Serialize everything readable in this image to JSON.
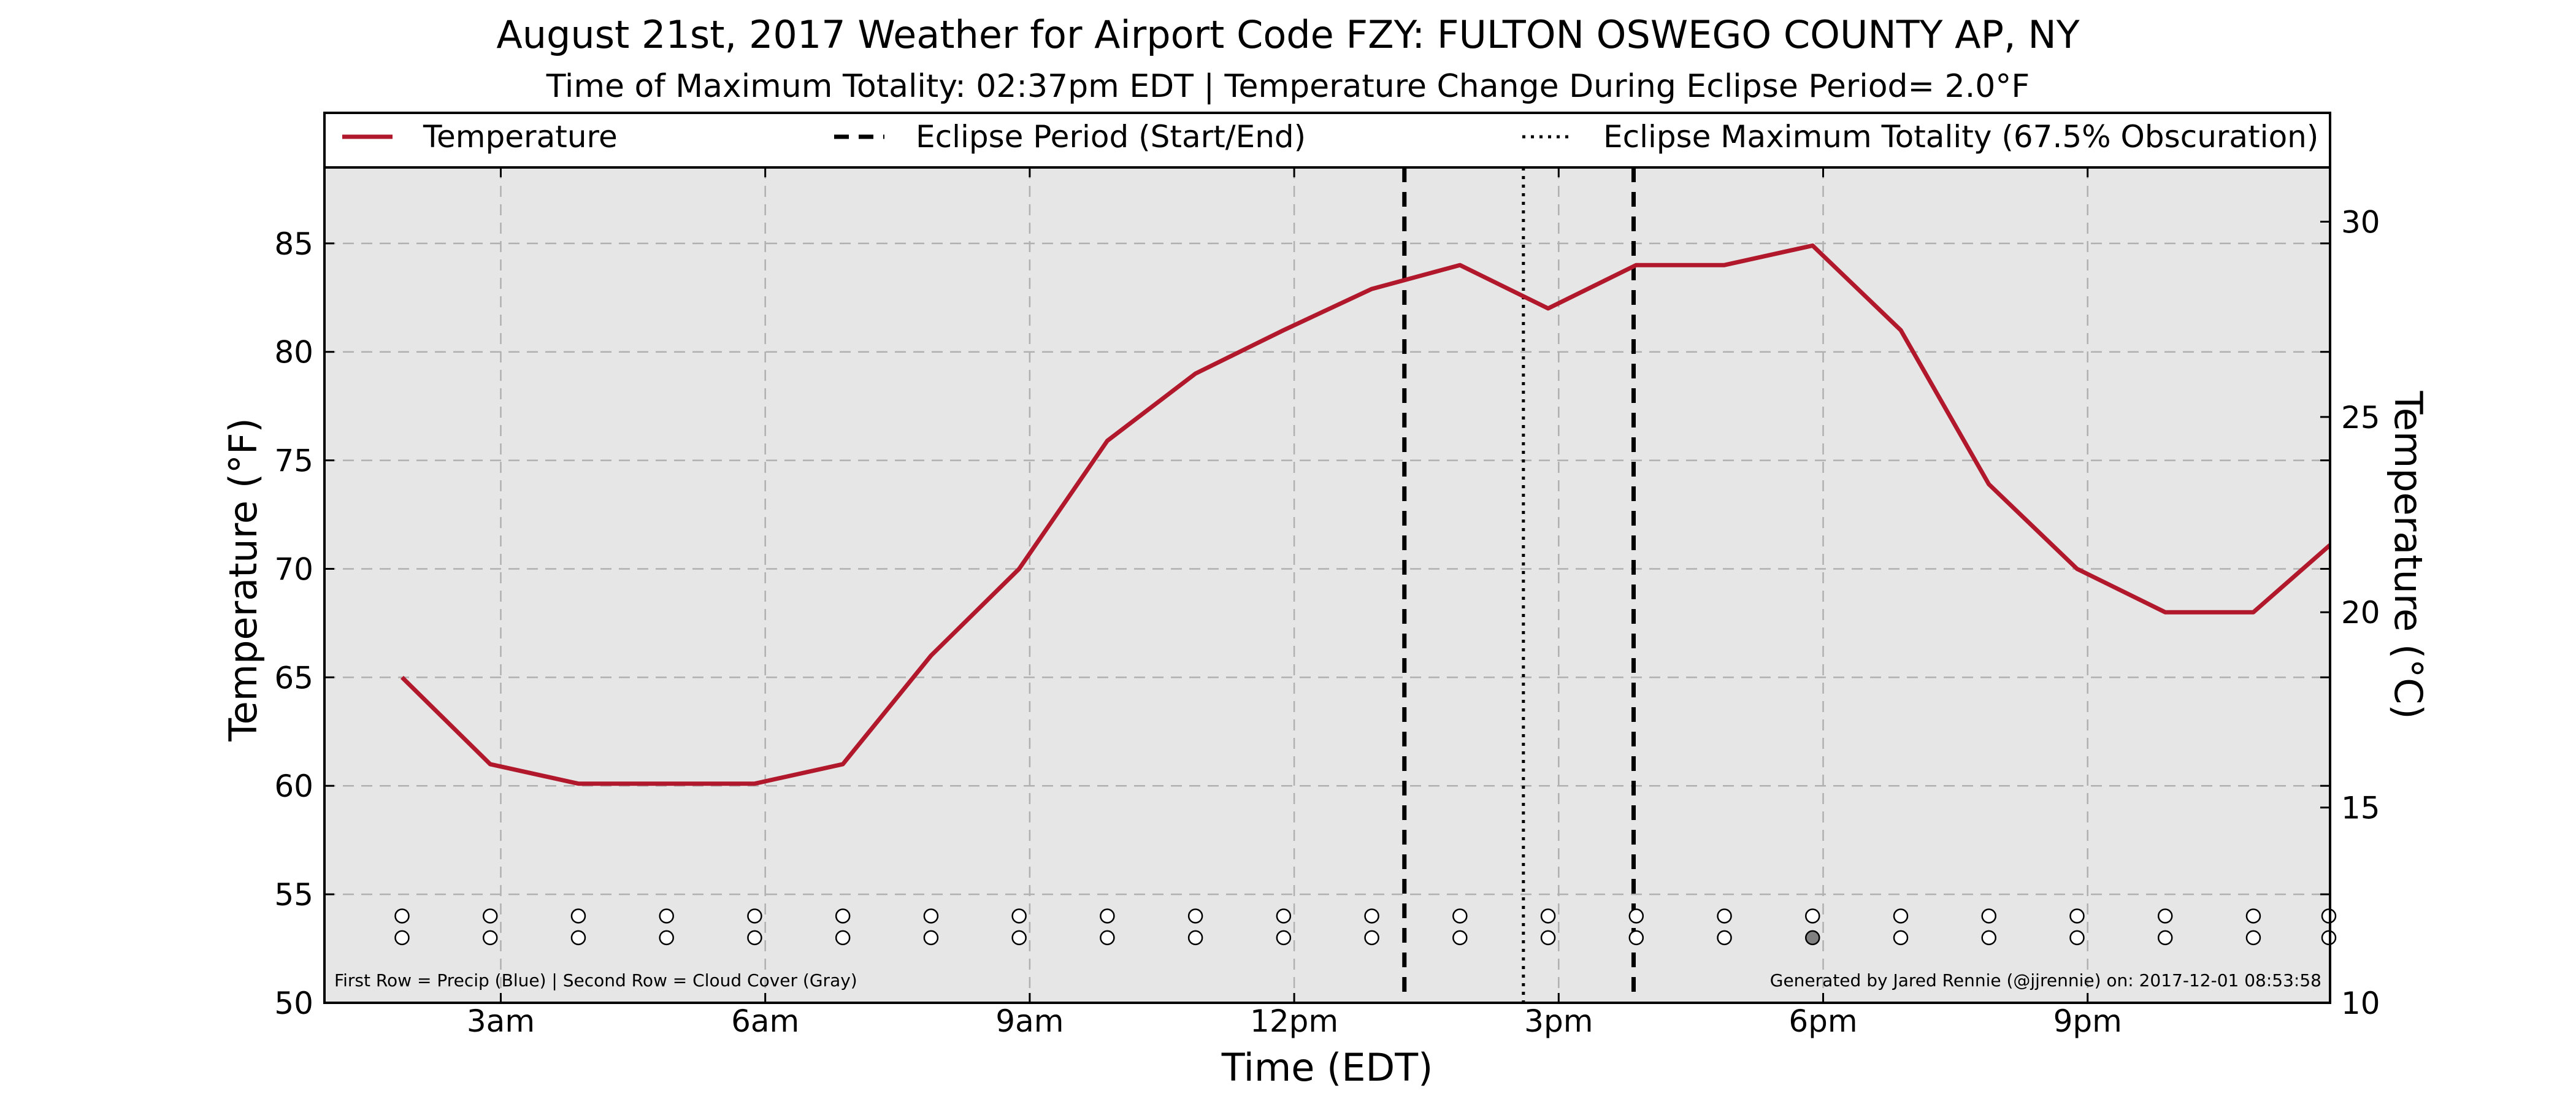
{
  "chart_data": {
    "type": "line",
    "title": "August 21st, 2017 Weather for Airport Code FZY: FULTON OSWEGO COUNTY AP, NY",
    "subtitle": "Time of Maximum Totality: 02:37pm EDT | Temperature Change During Eclipse Period= 2.0°F",
    "xlabel": "Time (EDT)",
    "ylabel": "Temperature (°F)",
    "ylabel_right": "Temperature (°C)",
    "xlim": [
      1.0,
      23.75
    ],
    "ylim": [
      50,
      88.5
    ],
    "x_ticks": [
      {
        "x": 3,
        "label": "3am"
      },
      {
        "x": 6,
        "label": "6am"
      },
      {
        "x": 9,
        "label": "9am"
      },
      {
        "x": 12,
        "label": "12pm"
      },
      {
        "x": 15,
        "label": "3pm"
      },
      {
        "x": 18,
        "label": "6pm"
      },
      {
        "x": 21,
        "label": "9pm"
      }
    ],
    "y_ticks": [
      50,
      55,
      60,
      65,
      70,
      75,
      80,
      85
    ],
    "y_ticks_right": [
      10,
      15,
      20,
      25,
      30
    ],
    "grid": true,
    "legend_position": "top",
    "legend": [
      {
        "label": "Temperature",
        "style": "solid"
      },
      {
        "label": "Eclipse Period (Start/End)",
        "style": "dashed"
      },
      {
        "label": "Eclipse Maximum Totality (67.5% Obscuration)",
        "style": "dotted"
      }
    ],
    "series": [
      {
        "name": "Temperature",
        "color": "#b2182b",
        "x": [
          1.88,
          2.88,
          3.88,
          4.88,
          5.88,
          6.88,
          7.88,
          8.88,
          9.88,
          10.88,
          11.88,
          12.88,
          13.88,
          14.88,
          15.88,
          16.88,
          17.88,
          18.88,
          19.88,
          20.88,
          21.88,
          22.88,
          23.88
        ],
        "y": [
          65.0,
          61.0,
          60.1,
          60.1,
          60.1,
          61.0,
          66.0,
          70.0,
          75.9,
          79.0,
          81.0,
          82.9,
          84.0,
          82.0,
          84.0,
          84.0,
          84.9,
          81.0,
          73.9,
          70.0,
          68.0,
          68.0,
          71.1
        ]
      }
    ],
    "eclipse_start": 13.25,
    "eclipse_max": 14.6,
    "eclipse_end": 15.85,
    "marker_x": [
      1.88,
      2.88,
      3.88,
      4.88,
      5.88,
      6.88,
      7.88,
      8.88,
      9.88,
      10.88,
      11.88,
      12.88,
      13.88,
      14.88,
      15.88,
      16.88,
      17.88,
      18.88,
      19.88,
      20.88,
      21.88,
      22.88,
      23.88
    ],
    "precip_row_y": 54,
    "cloud_row_y": 53,
    "cloud_cover": [
      0,
      0,
      0,
      0,
      0,
      0,
      0,
      0,
      0,
      0,
      0,
      0,
      0,
      0,
      0,
      0,
      1,
      0,
      0,
      0,
      0,
      0,
      0
    ],
    "colors": {
      "plot_bg": "#e6e6e6",
      "grid": "#b0b0b0",
      "temperature": "#b2182b",
      "cloud_fill": "#808080",
      "marker_empty": "#ffffff"
    },
    "footnote_left": "First Row = Precip (Blue) | Second Row = Cloud Cover (Gray)",
    "footnote_right": "Generated by Jared Rennie (@jjrennie) on: 2017-12-01 08:53:58"
  }
}
